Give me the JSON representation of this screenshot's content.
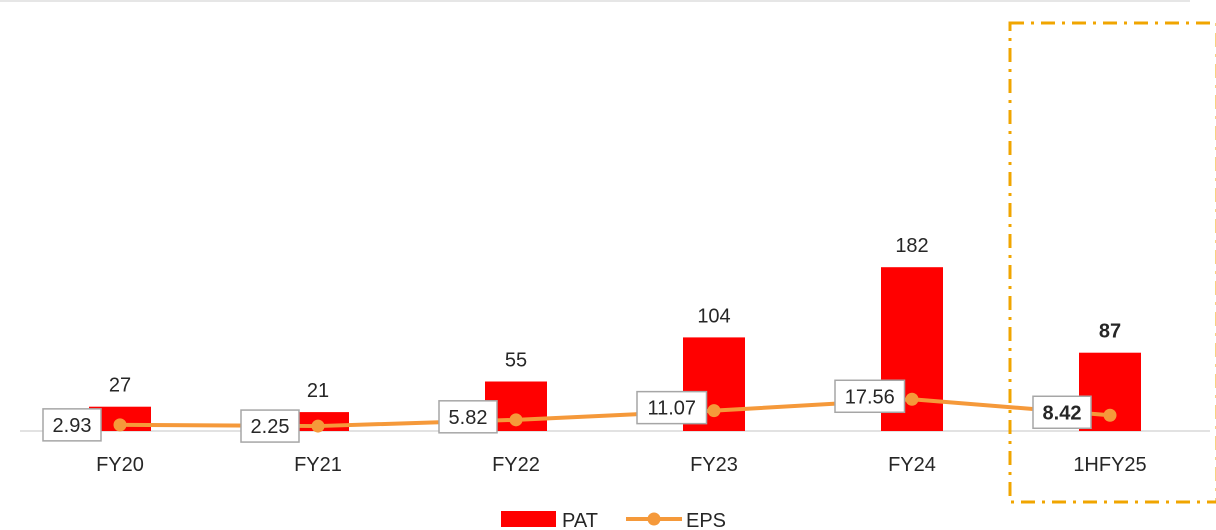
{
  "colors": {
    "pat": "#ff0000",
    "eps": "#f5993a",
    "highlight": "#f0a500",
    "label_border": "#a6a6a6",
    "axis": "#d9d9d9",
    "text": "#262626"
  },
  "chart_data": {
    "type": "bar",
    "categories": [
      "FY20",
      "FY21",
      "FY22",
      "FY23",
      "FY24",
      "1HFY25"
    ],
    "series": [
      {
        "name": "PAT",
        "type": "bar",
        "values": [
          27,
          21,
          55,
          104,
          182,
          87
        ]
      },
      {
        "name": "EPS",
        "type": "line",
        "values": [
          2.93,
          2.25,
          5.82,
          11.07,
          17.56,
          8.42
        ]
      }
    ],
    "bar_labels": [
      "27",
      "21",
      "55",
      "104",
      "182",
      "87"
    ],
    "line_labels": [
      "2.93",
      "2.25",
      "5.82",
      "11.07",
      "17.56",
      "8.42"
    ],
    "highlighted_category": "1HFY25",
    "legend": {
      "position": "bottom",
      "entries": [
        "PAT",
        "EPS"
      ]
    },
    "title": "",
    "xlabel": "",
    "ylabel": "",
    "grid": false
  }
}
